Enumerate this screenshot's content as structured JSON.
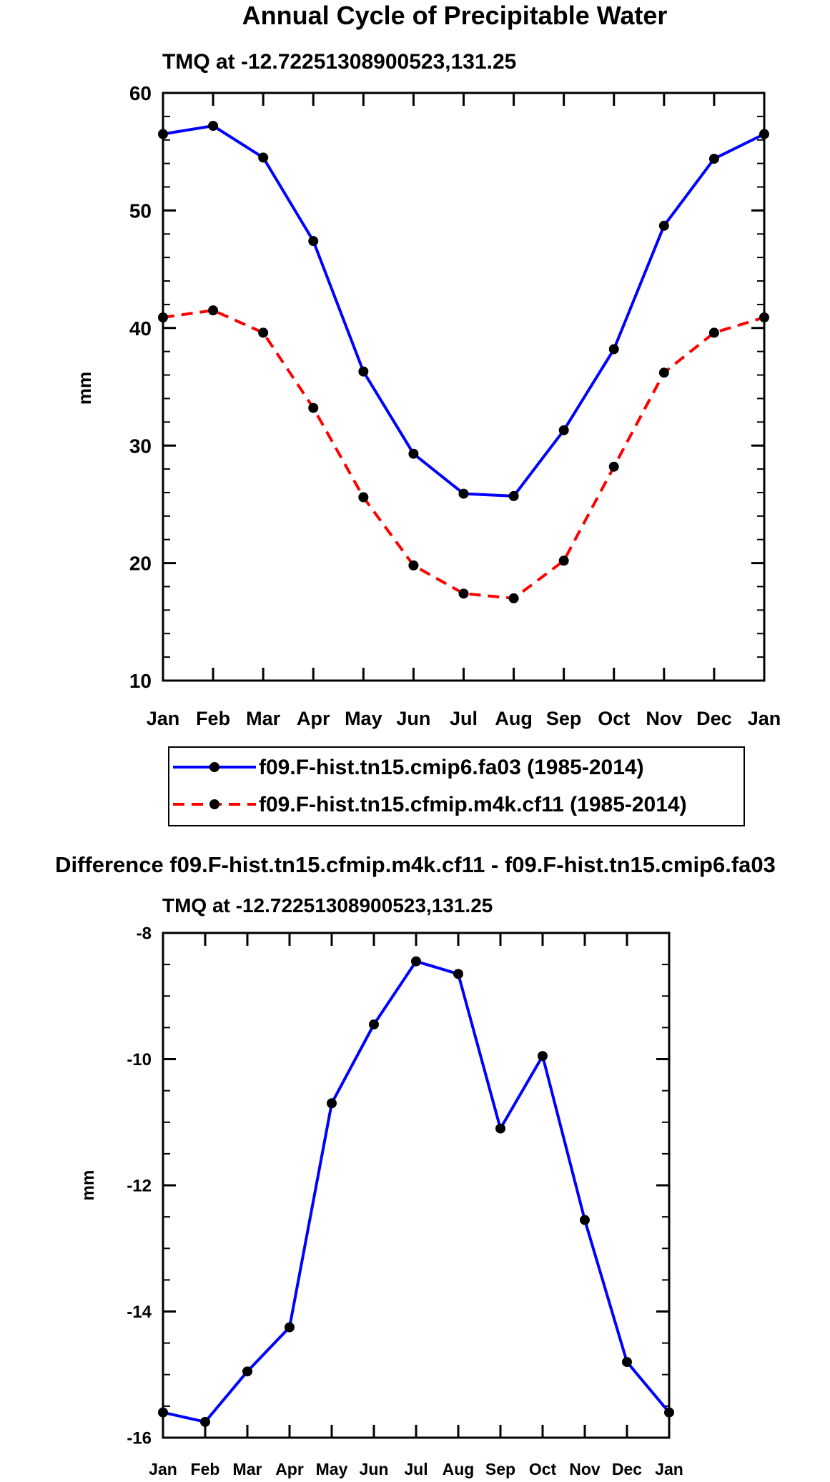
{
  "chart_data": [
    {
      "type": "line",
      "title": "Annual Cycle of Precipitable Water",
      "subtitle": "TMQ at -12.72251308900523,131.25",
      "xlabel": "",
      "ylabel": "mm",
      "categories": [
        "Jan",
        "Feb",
        "Mar",
        "Apr",
        "May",
        "Jun",
        "Jul",
        "Aug",
        "Sep",
        "Oct",
        "Nov",
        "Dec",
        "Jan"
      ],
      "ylim": [
        10,
        60
      ],
      "yticks": [
        10,
        20,
        30,
        40,
        50,
        60
      ],
      "ytick_labels": [
        "10",
        "20",
        "30",
        "40",
        "50",
        "60"
      ],
      "legend_position": "bottom",
      "series": [
        {
          "name": "f09.F-hist.tn15.cmip6.fa03 (1985-2014)",
          "color": "#0000ff",
          "dash": "solid",
          "values": [
            56.5,
            57.2,
            54.5,
            47.4,
            36.3,
            29.3,
            25.9,
            25.7,
            31.3,
            38.2,
            48.7,
            54.4,
            56.5
          ]
        },
        {
          "name": "f09.F-hist.tn15.cfmip.m4k.cf11 (1985-2014)",
          "color": "#ff0000",
          "dash": "dashed",
          "values": [
            40.9,
            41.5,
            39.6,
            33.2,
            25.6,
            19.8,
            17.4,
            17.0,
            20.2,
            28.2,
            36.2,
            39.6,
            40.9
          ]
        }
      ]
    },
    {
      "type": "line",
      "title": "Difference f09.F-hist.tn15.cfmip.m4k.cf11 - f09.F-hist.tn15.cmip6.fa03",
      "subtitle": "TMQ at -12.72251308900523,131.25",
      "xlabel": "",
      "ylabel": "mm",
      "categories": [
        "Jan",
        "Feb",
        "Mar",
        "Apr",
        "May",
        "Jun",
        "Jul",
        "Aug",
        "Sep",
        "Oct",
        "Nov",
        "Dec",
        "Jan"
      ],
      "ylim": [
        -16,
        -8
      ],
      "yticks": [
        -16,
        -14,
        -12,
        -10,
        -8
      ],
      "ytick_labels": [
        "-16",
        "-14",
        "-12",
        "-10",
        "-8"
      ],
      "series": [
        {
          "name": "Difference",
          "color": "#0000ff",
          "dash": "solid",
          "values": [
            -15.6,
            -15.75,
            -14.95,
            -14.25,
            -10.7,
            -9.45,
            -8.45,
            -8.65,
            -11.1,
            -9.95,
            -12.55,
            -14.8,
            -15.6
          ]
        }
      ]
    }
  ]
}
